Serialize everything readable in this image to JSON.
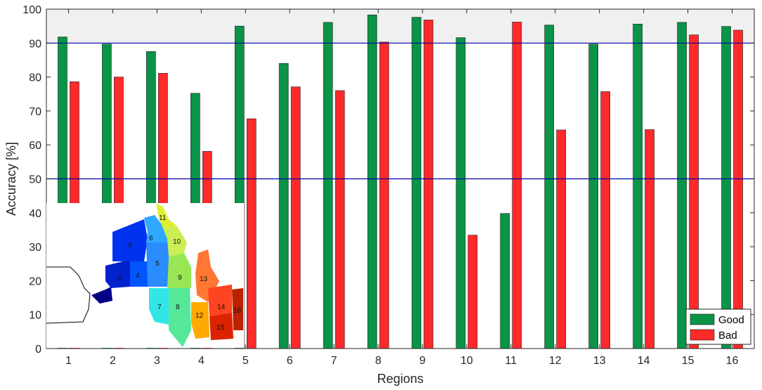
{
  "chart_data": {
    "type": "bar",
    "xlabel": "Regions",
    "ylabel": "Accuracy [%]",
    "ylim": [
      0,
      100
    ],
    "yticks": [
      0,
      10,
      20,
      30,
      40,
      50,
      60,
      70,
      80,
      90,
      100
    ],
    "categories": [
      "1",
      "2",
      "3",
      "4",
      "5",
      "6",
      "7",
      "8",
      "9",
      "10",
      "11",
      "12",
      "13",
      "14",
      "15",
      "16"
    ],
    "series": [
      {
        "name": "Good",
        "color": "#0a9447",
        "values": [
          91.8,
          89.7,
          87.5,
          75.2,
          95.0,
          84.0,
          96.1,
          98.3,
          97.6,
          91.6,
          39.8,
          95.3,
          89.7,
          95.6,
          96.1,
          94.9
        ]
      },
      {
        "name": "Bad",
        "color": "#ff2a2a",
        "values": [
          78.6,
          80.0,
          81.1,
          58.1,
          67.7,
          77.1,
          76.0,
          90.3,
          96.8,
          33.4,
          96.2,
          64.4,
          75.7,
          64.5,
          92.4,
          93.8
        ]
      }
    ],
    "reference_lines": [
      50,
      90
    ],
    "reference_line_color": "#0000aa",
    "shaded_band": [
      90,
      100
    ],
    "shaded_band_color": "#f0f0f0",
    "legend": {
      "position": "bottom-right",
      "entries": [
        "Good",
        "Bad"
      ]
    },
    "grid": false,
    "inset_map": {
      "description_icon": "region-map",
      "region_labels": [
        "1",
        "2",
        "3",
        "4",
        "5",
        "6",
        "7",
        "8",
        "9",
        "10",
        "11",
        "12",
        "13",
        "14",
        "15",
        "16"
      ]
    }
  }
}
